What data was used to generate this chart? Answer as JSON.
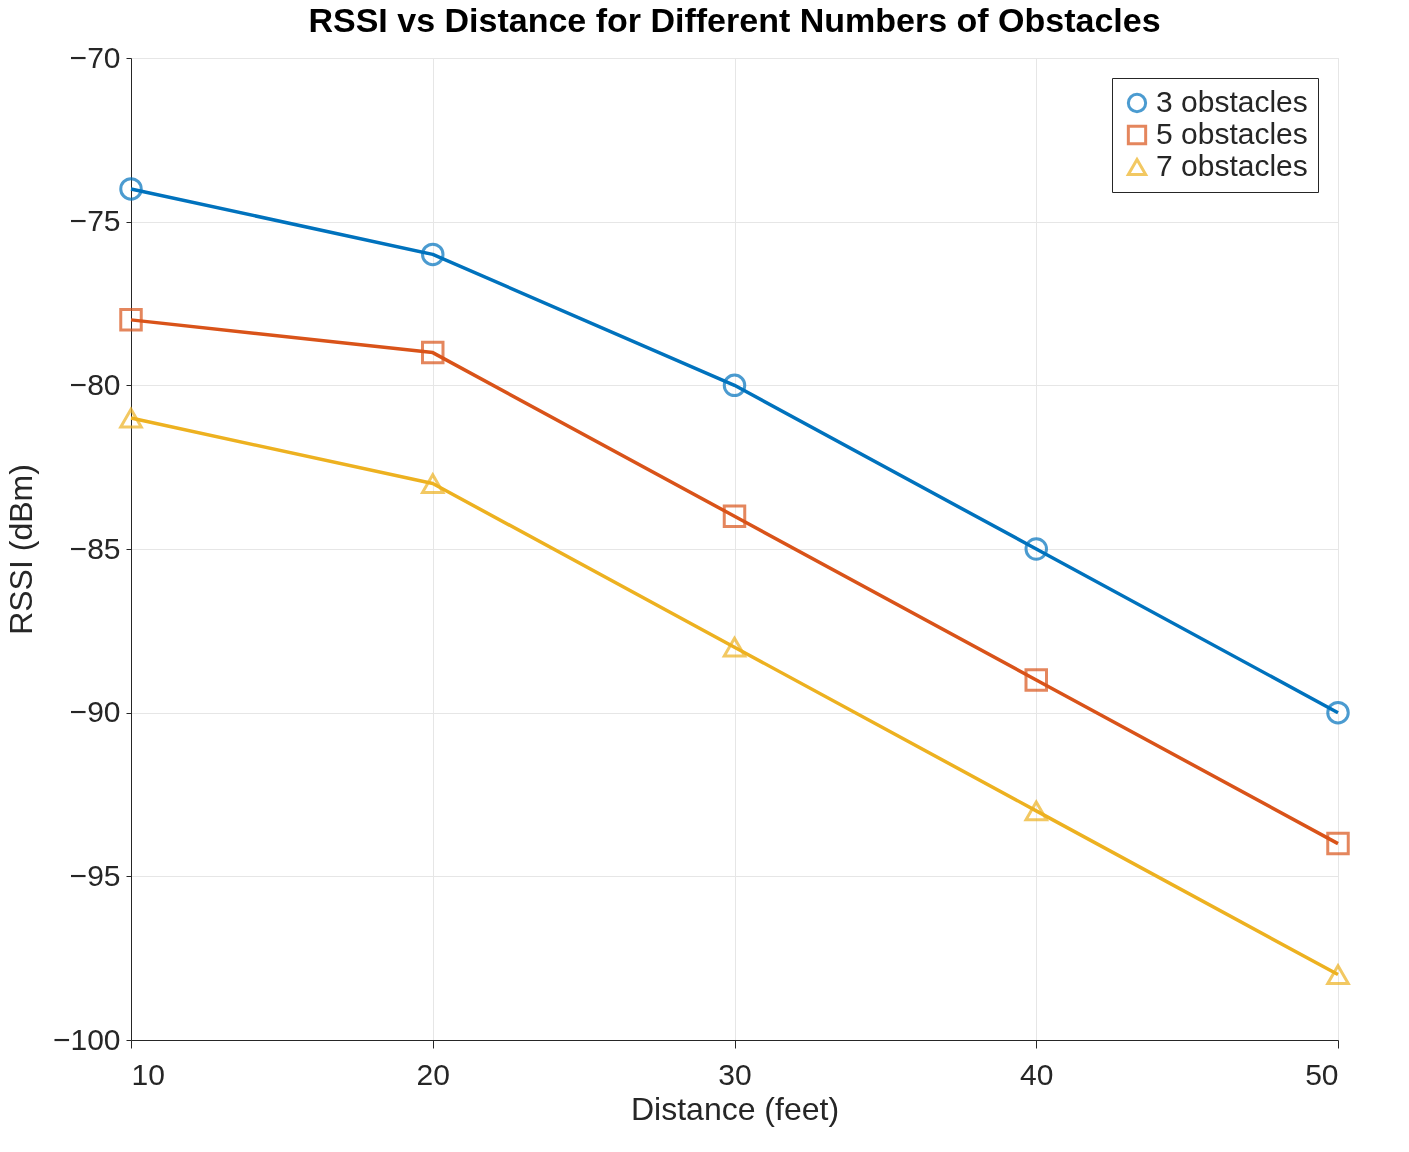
{
  "chart_data": {
    "type": "line",
    "title": "RSSI vs Distance for Different Numbers of Obstacles",
    "xlabel": "Distance (feet)",
    "ylabel": "RSSI (dBm)",
    "x": [
      10,
      20,
      30,
      40,
      50
    ],
    "series": [
      {
        "name": "3 obstacles",
        "color": "#0072bd",
        "marker": "circle",
        "values": [
          -74,
          -76,
          -80,
          -85,
          -90
        ]
      },
      {
        "name": "5 obstacles",
        "color": "#d95319",
        "marker": "square",
        "values": [
          -78,
          -79,
          -84,
          -89,
          -94
        ]
      },
      {
        "name": "7 obstacles",
        "color": "#edb120",
        "marker": "triangle",
        "values": [
          -81,
          -83,
          -88,
          -93,
          -98
        ]
      }
    ],
    "xlim": [
      10,
      50
    ],
    "xticks": [
      10,
      20,
      30,
      40,
      50
    ],
    "ylim": [
      -100,
      -70
    ],
    "yticks": [
      -100,
      -95,
      -90,
      -85,
      -80,
      -75,
      -70
    ],
    "grid": true,
    "legend": "top right",
    "line_style": "solid"
  }
}
